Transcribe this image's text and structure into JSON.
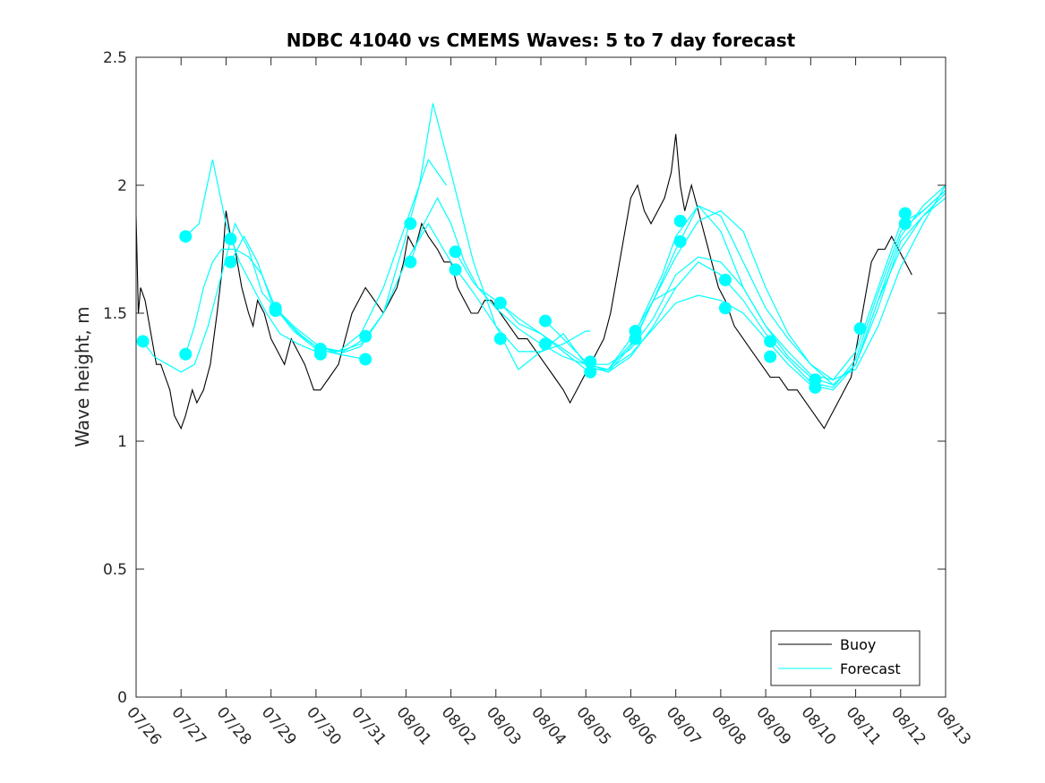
{
  "colors": {
    "buoy": "#000000",
    "forecast": "#00ffff",
    "axis": "#262626",
    "background": "#ffffff"
  },
  "chart_data": {
    "type": "line",
    "title": "NDBC 41040 vs CMEMS Waves: 5 to 7 day forecast",
    "xlabel": "",
    "ylabel": "Wave height, m",
    "x_unit": "days since 07/26 00:00 (x axis spans 07/26 to 08/13)",
    "xlim": [
      0,
      18
    ],
    "ylim": [
      0,
      2.5
    ],
    "y_ticks": [
      0,
      0.5,
      1,
      1.5,
      2,
      2.5
    ],
    "y_tick_labels": [
      "0",
      "0.5",
      "1",
      "1.5",
      "2",
      "2.5"
    ],
    "x_ticks": [
      0,
      1,
      2,
      3,
      4,
      5,
      6,
      7,
      8,
      9,
      10,
      11,
      12,
      13,
      14,
      15,
      16,
      17,
      18
    ],
    "x_tick_labels": [
      "07/26",
      "07/27",
      "07/28",
      "07/29",
      "07/30",
      "07/31",
      "08/01",
      "08/02",
      "08/03",
      "08/04",
      "08/05",
      "08/06",
      "08/07",
      "08/08",
      "08/09",
      "08/10",
      "08/11",
      "08/12",
      "08/13"
    ],
    "grid": false,
    "legend": {
      "position": "bottom-right",
      "entries": [
        "Buoy",
        "Forecast"
      ]
    },
    "series": [
      {
        "name": "Buoy",
        "style": "line",
        "x": [
          0,
          0.05,
          0.1,
          0.2,
          0.35,
          0.45,
          0.55,
          0.65,
          0.75,
          0.85,
          1.0,
          1.1,
          1.25,
          1.35,
          1.5,
          1.65,
          1.8,
          1.9,
          2.0,
          2.1,
          2.2,
          2.35,
          2.5,
          2.6,
          2.7,
          2.85,
          3.0,
          3.15,
          3.3,
          3.45,
          3.6,
          3.75,
          3.85,
          3.95,
          4.1,
          4.3,
          4.5,
          4.65,
          4.8,
          4.95,
          5.1,
          5.3,
          5.5,
          5.65,
          5.8,
          5.95,
          6.05,
          6.2,
          6.35,
          6.5,
          6.7,
          6.85,
          7.0,
          7.15,
          7.3,
          7.45,
          7.6,
          7.75,
          7.9,
          8.1,
          8.3,
          8.5,
          8.7,
          8.9,
          9.1,
          9.3,
          9.5,
          9.65,
          9.8,
          9.95,
          10.1,
          10.25,
          10.4,
          10.55,
          10.7,
          10.85,
          11.0,
          11.15,
          11.3,
          11.45,
          11.6,
          11.75,
          11.9,
          12.0,
          12.1,
          12.2,
          12.35,
          12.5,
          12.65,
          12.8,
          12.95,
          13.1,
          13.3,
          13.5,
          13.7,
          13.9,
          14.1,
          14.3,
          14.5,
          14.7,
          14.9,
          15.1,
          15.3,
          15.45,
          15.6,
          15.75,
          15.9,
          16.05,
          16.2,
          16.35,
          16.5,
          16.65,
          16.8,
          16.95,
          17.1,
          17.25
        ],
        "y": [
          1.88,
          1.5,
          1.6,
          1.55,
          1.4,
          1.3,
          1.3,
          1.25,
          1.2,
          1.1,
          1.05,
          1.1,
          1.2,
          1.15,
          1.2,
          1.3,
          1.5,
          1.65,
          1.9,
          1.8,
          1.75,
          1.6,
          1.5,
          1.45,
          1.55,
          1.5,
          1.4,
          1.35,
          1.3,
          1.4,
          1.35,
          1.3,
          1.25,
          1.2,
          1.2,
          1.25,
          1.3,
          1.4,
          1.5,
          1.55,
          1.6,
          1.55,
          1.5,
          1.55,
          1.6,
          1.7,
          1.8,
          1.75,
          1.85,
          1.8,
          1.75,
          1.7,
          1.7,
          1.6,
          1.55,
          1.5,
          1.5,
          1.55,
          1.55,
          1.5,
          1.45,
          1.4,
          1.4,
          1.35,
          1.3,
          1.25,
          1.2,
          1.15,
          1.2,
          1.25,
          1.3,
          1.35,
          1.4,
          1.5,
          1.65,
          1.8,
          1.95,
          2.0,
          1.9,
          1.85,
          1.9,
          1.95,
          2.05,
          2.2,
          2.0,
          1.9,
          2.0,
          1.9,
          1.8,
          1.7,
          1.6,
          1.55,
          1.45,
          1.4,
          1.35,
          1.3,
          1.25,
          1.25,
          1.2,
          1.2,
          1.15,
          1.1,
          1.05,
          1.1,
          1.15,
          1.2,
          1.25,
          1.4,
          1.55,
          1.7,
          1.75,
          1.75,
          1.8,
          1.75,
          1.7,
          1.65
        ]
      },
      {
        "name": "Forecast",
        "style": "line",
        "x": [
          0.15,
          0.4,
          0.7,
          1.0,
          1.3,
          1.6,
          1.9,
          2.2,
          2.5,
          2.8,
          3.1,
          3.4,
          3.7,
          4.0,
          4.3,
          4.6,
          4.9,
          5.15
        ],
        "y": [
          1.39,
          1.33,
          1.3,
          1.27,
          1.3,
          1.45,
          1.65,
          1.85,
          1.75,
          1.58,
          1.52,
          1.46,
          1.41,
          1.37,
          1.36,
          1.35,
          1.38,
          1.41
        ]
      },
      {
        "name": "Forecast",
        "style": "line",
        "x": [
          1.1,
          1.3,
          1.5,
          1.7,
          1.9,
          2.2,
          2.5,
          2.8,
          3.1,
          3.5,
          4.0,
          4.5,
          5.1
        ],
        "y": [
          1.34,
          1.45,
          1.6,
          1.7,
          1.75,
          1.75,
          1.72,
          1.65,
          1.52,
          1.43,
          1.36,
          1.34,
          1.32
        ]
      },
      {
        "name": "Forecast",
        "style": "line",
        "x": [
          1.1,
          1.4,
          1.7,
          2.0,
          2.3,
          2.6,
          2.9,
          3.2,
          3.6,
          4.0,
          4.5,
          5.0,
          5.5,
          6.0,
          6.5,
          6.9
        ],
        "y": [
          1.8,
          1.85,
          2.1,
          1.85,
          1.7,
          1.6,
          1.5,
          1.42,
          1.38,
          1.35,
          1.35,
          1.42,
          1.6,
          1.85,
          2.1,
          2.0
        ]
      },
      {
        "name": "Forecast",
        "style": "line",
        "x": [
          2.1,
          2.4,
          2.7,
          3.0,
          3.3,
          3.6,
          4.0,
          4.5,
          5.0,
          5.5,
          6.0,
          6.5,
          7.0,
          7.5,
          8.0,
          8.5,
          9.0,
          9.5,
          10.0,
          10.1
        ],
        "y": [
          1.7,
          1.8,
          1.7,
          1.55,
          1.48,
          1.42,
          1.37,
          1.35,
          1.38,
          1.5,
          1.7,
          1.85,
          1.7,
          1.58,
          1.45,
          1.35,
          1.35,
          1.38,
          1.43,
          1.43
        ]
      },
      {
        "name": "Forecast",
        "style": "line",
        "x": [
          3.1,
          3.5,
          4.0,
          4.5,
          5.0,
          5.5,
          6.0,
          6.3,
          6.6,
          7.0,
          7.5,
          8.0,
          8.5,
          9.0,
          9.5,
          10.0,
          10.5,
          11.0,
          11.5,
          12.0
        ],
        "y": [
          1.52,
          1.45,
          1.38,
          1.34,
          1.37,
          1.5,
          1.8,
          2.0,
          2.32,
          2.05,
          1.7,
          1.45,
          1.28,
          1.35,
          1.42,
          1.3,
          1.28,
          1.4,
          1.55,
          1.6
        ]
      },
      {
        "name": "Forecast",
        "style": "line",
        "x": [
          6.1,
          6.4,
          6.7,
          7.0,
          7.3,
          7.6,
          8.0,
          8.5,
          9.0,
          9.5,
          10.0,
          10.5,
          11.0,
          11.3,
          11.7,
          12.0,
          12.5,
          13.0,
          13.5,
          14.0,
          14.5,
          15.0,
          15.5,
          16.0,
          16.5,
          17.0,
          17.5,
          18.0
        ],
        "y": [
          1.7,
          1.85,
          1.95,
          1.85,
          1.7,
          1.6,
          1.55,
          1.48,
          1.42,
          1.35,
          1.28,
          1.28,
          1.38,
          1.5,
          1.65,
          1.8,
          1.92,
          1.82,
          1.6,
          1.45,
          1.33,
          1.25,
          1.22,
          1.3,
          1.55,
          1.8,
          1.92,
          2.0
        ]
      },
      {
        "name": "Forecast",
        "style": "line",
        "x": [
          7.1,
          7.5,
          8.0,
          8.5,
          9.0,
          9.5,
          10.0,
          10.5,
          11.0,
          11.5,
          12.0,
          12.5,
          13.0,
          13.5,
          14.0,
          14.5,
          15.0,
          15.5,
          16.0,
          16.5,
          17.0,
          17.5,
          18.0
        ],
        "y": [
          1.74,
          1.62,
          1.52,
          1.44,
          1.38,
          1.33,
          1.3,
          1.3,
          1.36,
          1.48,
          1.65,
          1.72,
          1.7,
          1.6,
          1.45,
          1.35,
          1.26,
          1.24,
          1.35,
          1.6,
          1.85,
          1.9,
          1.98
        ]
      },
      {
        "name": "Forecast",
        "style": "line",
        "x": [
          8.1,
          8.5,
          9.0,
          9.5,
          10.0,
          10.5,
          11.0,
          11.5,
          12.0,
          12.5,
          13.0,
          13.5,
          14.0,
          14.5,
          15.0,
          15.5,
          16.0,
          16.5,
          17.0,
          17.5,
          18.0
        ],
        "y": [
          1.54,
          1.46,
          1.42,
          1.36,
          1.3,
          1.28,
          1.34,
          1.44,
          1.54,
          1.57,
          1.55,
          1.5,
          1.4,
          1.3,
          1.22,
          1.2,
          1.3,
          1.55,
          1.75,
          1.88,
          1.97
        ]
      },
      {
        "name": "Forecast",
        "style": "line",
        "x": [
          9.1,
          9.5,
          10.0,
          10.5,
          11.0,
          11.5,
          12.0,
          12.5,
          13.0,
          13.5,
          14.0,
          14.5,
          15.0,
          15.5,
          16.0,
          16.5,
          17.0,
          17.5,
          18.0
        ],
        "y": [
          1.47,
          1.4,
          1.31,
          1.27,
          1.33,
          1.45,
          1.6,
          1.7,
          1.65,
          1.55,
          1.42,
          1.32,
          1.23,
          1.21,
          1.32,
          1.58,
          1.82,
          1.9,
          1.98
        ]
      },
      {
        "name": "Forecast",
        "style": "line",
        "x": [
          10.1,
          10.5,
          11.0,
          11.5,
          12.0,
          12.5,
          13.0,
          13.5,
          14.0,
          14.5,
          15.0,
          15.5,
          16.0,
          16.5,
          17.0,
          17.5,
          18.0
        ],
        "y": [
          1.29,
          1.27,
          1.37,
          1.55,
          1.72,
          1.86,
          1.9,
          1.82,
          1.6,
          1.42,
          1.3,
          1.22,
          1.3,
          1.52,
          1.78,
          1.88,
          1.95
        ]
      },
      {
        "name": "Forecast",
        "style": "line",
        "x": [
          11.1,
          11.5,
          12.0,
          12.5,
          13.0,
          13.5,
          14.0,
          14.5,
          15.0,
          15.5,
          16.0,
          16.5,
          17.0,
          17.5,
          18.0
        ],
        "y": [
          1.4,
          1.55,
          1.75,
          1.92,
          1.88,
          1.7,
          1.52,
          1.4,
          1.3,
          1.24,
          1.28,
          1.45,
          1.68,
          1.85,
          2.0
        ]
      },
      {
        "name": "Forecast",
        "style": "markers",
        "x": [
          0.15,
          1.1,
          1.1,
          2.1,
          2.1,
          3.1,
          3.1,
          4.1,
          4.1,
          5.1,
          5.1,
          6.1,
          6.1,
          7.1,
          7.1,
          8.1,
          8.1,
          9.1,
          9.1,
          10.1,
          10.1,
          11.1,
          11.1,
          12.1,
          12.1,
          13.1,
          13.1,
          14.1,
          14.1,
          15.1,
          15.1,
          16.1,
          17.1,
          17.1
        ],
        "y": [
          1.39,
          1.8,
          1.34,
          1.79,
          1.7,
          1.52,
          1.51,
          1.36,
          1.34,
          1.41,
          1.32,
          1.85,
          1.7,
          1.74,
          1.67,
          1.54,
          1.4,
          1.47,
          1.38,
          1.31,
          1.27,
          1.43,
          1.4,
          1.86,
          1.78,
          1.63,
          1.52,
          1.39,
          1.33,
          1.24,
          1.21,
          1.44,
          1.89,
          1.85
        ]
      }
    ]
  }
}
